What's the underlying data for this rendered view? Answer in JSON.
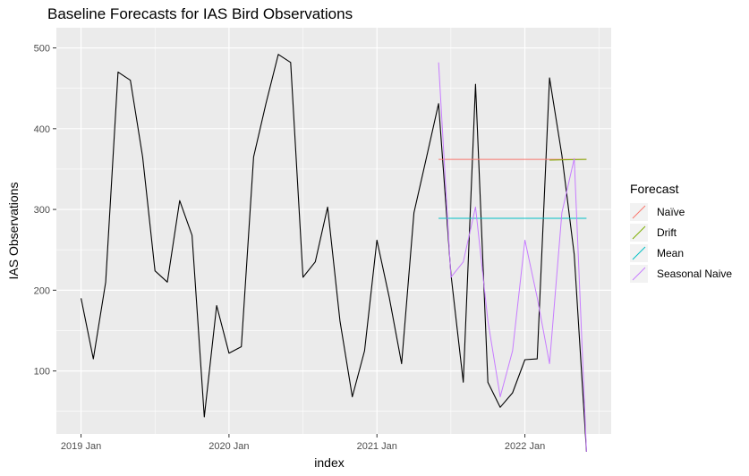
{
  "chart_data": {
    "type": "line",
    "title": "Baseline Forecasts for IAS Bird Observations",
    "xlabel": "index",
    "ylabel": "IAS Observations",
    "x_ticks": [
      "2019 Jan",
      "2020 Jan",
      "2021 Jan",
      "2022 Jan"
    ],
    "y_ticks": [
      100,
      200,
      300,
      400,
      500
    ],
    "xlim": [
      "2018-11",
      "2022-08"
    ],
    "ylim": [
      22,
      525
    ],
    "grid": true,
    "legend_title": "Forecast",
    "legend_position": "right",
    "observed": {
      "x": [
        "2019-01",
        "2019-02",
        "2019-03",
        "2019-04",
        "2019-05",
        "2019-06",
        "2019-07",
        "2019-08",
        "2019-09",
        "2019-10",
        "2019-11",
        "2019-12",
        "2020-01",
        "2020-02",
        "2020-03",
        "2020-04",
        "2020-05",
        "2020-06",
        "2020-07",
        "2020-08",
        "2020-09",
        "2020-10",
        "2020-11",
        "2020-12",
        "2021-01",
        "2021-02",
        "2021-03",
        "2021-04",
        "2021-05",
        "2021-06",
        "2021-07",
        "2021-08",
        "2021-09",
        "2021-10",
        "2021-11",
        "2021-12",
        "2022-01",
        "2022-02",
        "2022-03",
        "2022-04",
        "2022-05",
        "2022-06"
      ],
      "values": [
        190,
        115,
        210,
        470,
        460,
        365,
        224,
        210,
        311,
        268,
        43,
        181,
        122,
        130,
        365,
        431,
        492,
        482,
        216,
        235,
        303,
        162,
        68,
        125,
        262,
        191,
        109,
        296,
        363,
        431,
        220,
        86,
        455,
        86,
        55,
        73,
        114,
        115,
        463,
        367,
        244,
        0
      ]
    },
    "series": [
      {
        "name": "Naïve",
        "color": "#F8766D",
        "x": [
          "2021-06",
          "2022-06"
        ],
        "values": [
          362,
          362
        ]
      },
      {
        "name": "Drift",
        "color": "#7CAE00",
        "x": [
          "2022-03",
          "2022-06"
        ],
        "values": [
          361,
          362
        ]
      },
      {
        "name": "Mean",
        "color": "#00BFC4",
        "x": [
          "2021-06",
          "2022-06"
        ],
        "values": [
          289,
          289
        ]
      },
      {
        "name": "Seasonal Naive",
        "color": "#C77CFF",
        "x": [
          "2021-06",
          "2021-07",
          "2021-08",
          "2021-09",
          "2021-10",
          "2021-11",
          "2021-12",
          "2022-01",
          "2022-02",
          "2022-03",
          "2022-04",
          "2022-05",
          "2022-06"
        ],
        "values": [
          482,
          216,
          235,
          303,
          162,
          68,
          125,
          262,
          191,
          109,
          296,
          363,
          0
        ]
      }
    ]
  }
}
